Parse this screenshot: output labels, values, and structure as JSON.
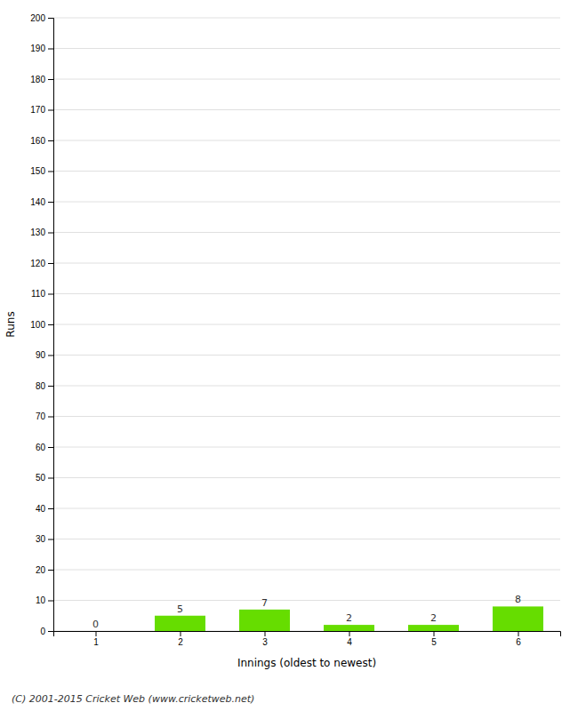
{
  "chart_data": {
    "type": "bar",
    "x": [
      1,
      2,
      3,
      4,
      5,
      6
    ],
    "values": [
      0,
      5,
      7,
      2,
      2,
      8
    ],
    "color": "#66dd00",
    "xlabel": "Innings (oldest to newest)",
    "ylabel": "Runs",
    "xlim": [
      0.5,
      6.5
    ],
    "xticks": [
      1,
      2,
      3,
      4,
      5,
      6
    ],
    "ylim": [
      0,
      200
    ],
    "yticks": [
      0,
      10,
      20,
      30,
      40,
      50,
      60,
      70,
      80,
      90,
      100,
      110,
      120,
      130,
      140,
      150,
      160,
      170,
      180,
      190,
      200
    ],
    "grid": true,
    "data_labels": true,
    "annotations": [
      "(C) 2001-2015 Cricket Web (www.cricketweb.net)"
    ]
  }
}
